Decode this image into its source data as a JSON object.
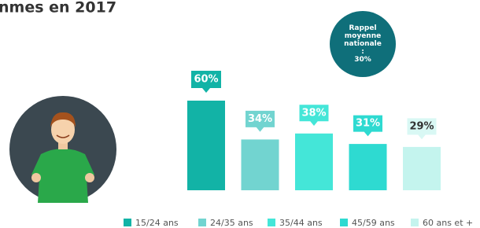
{
  "chart_data": {
    "type": "bar",
    "title": "nmes en 2017",
    "categories": [
      "15/24 ans",
      "24/35 ans",
      "35/44 ans",
      "45/59 ans",
      "60 ans et +"
    ],
    "values": [
      60,
      34,
      38,
      31,
      29
    ],
    "value_labels": [
      "60%",
      "34%",
      "38%",
      "31%",
      "29%"
    ],
    "colors": [
      "#12b3a6",
      "#72d4d0",
      "#44e6d8",
      "#2edad1",
      "#c4f4ee"
    ],
    "reference": {
      "label": "Rappel moyenne nationale :",
      "value": 30,
      "value_label": "30%"
    }
  }
}
